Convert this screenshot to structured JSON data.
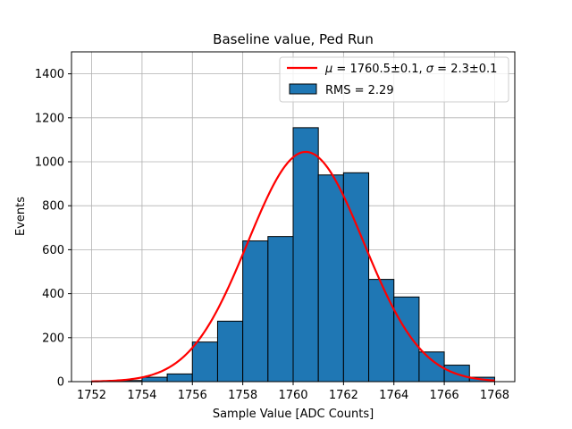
{
  "chart_data": {
    "type": "bar",
    "title": "Baseline value, Ped Run",
    "xlabel": "Sample Value [ADC Counts]",
    "ylabel": "Events",
    "xlim": [
      1751.2,
      1768.8
    ],
    "ylim": [
      0,
      1500
    ],
    "xticks": [
      1752,
      1754,
      1756,
      1758,
      1760,
      1762,
      1764,
      1766,
      1768
    ],
    "yticks": [
      0,
      200,
      400,
      600,
      800,
      1000,
      1200,
      1400
    ],
    "grid": true,
    "legend_position": "top-right",
    "histogram": {
      "bin_edges": [
        1752,
        1753,
        1754,
        1755,
        1756,
        1757,
        1758,
        1759,
        1760,
        1761,
        1762,
        1763,
        1764,
        1765,
        1766,
        1767,
        1768
      ],
      "counts": [
        2,
        5,
        20,
        35,
        180,
        275,
        640,
        660,
        1155,
        940,
        950,
        465,
        385,
        135,
        75,
        20
      ],
      "fill_color": "#1f77b4",
      "edge_color": "#000000",
      "legend": "RMS = 2.29"
    },
    "fit": {
      "type": "gaussian",
      "mu": 1760.5,
      "sigma": 2.3,
      "amplitude": 1045,
      "x_range": [
        1752,
        1768
      ],
      "color": "#ff0000",
      "legend_mu": "1760.5±0.1",
      "legend_sigma": "2.3±0.1"
    }
  }
}
